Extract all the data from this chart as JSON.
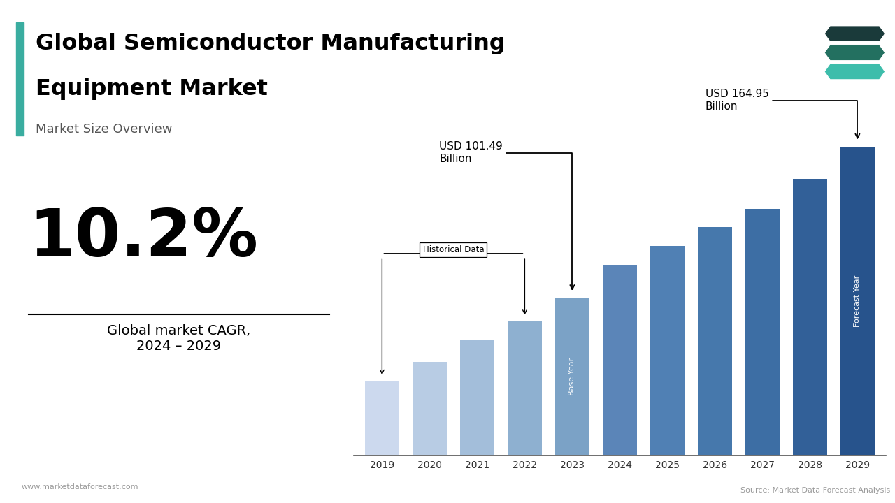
{
  "title_line1": "Global Semiconductor Manufacturing",
  "title_line2": "Equipment Market",
  "subtitle": "Market Size Overview",
  "cagr": "10.2%",
  "cagr_label": "Global market CAGR,\n2024 – 2029",
  "website": "www.marketdataforecast.com",
  "source": "Source: Market Data Forecast Analysis",
  "years": [
    2019,
    2020,
    2021,
    2022,
    2023,
    2024,
    2025,
    2026,
    2027,
    2028,
    2029
  ],
  "values": [
    40,
    50,
    62,
    72,
    84,
    101.49,
    112,
    122,
    132,
    148,
    164.95
  ],
  "bar_colors": [
    "#ccd9ee",
    "#b8cce4",
    "#a3beda",
    "#8eb0d0",
    "#7ba2c6",
    "#5b85b8",
    "#5080b4",
    "#4678ac",
    "#3d6ea4",
    "#326098",
    "#27538c"
  ],
  "annotation_101_text": "USD 101.49\nBillion",
  "annotation_164_text": "USD 164.95\nBillion",
  "historical_label": "Historical Data",
  "base_year_label": "Base Year",
  "forecast_year_label": "Forecast Year",
  "accent_color": "#3aada0",
  "title_bar_color": "#3aada0",
  "background_color": "#ffffff",
  "icon_colors": [
    "#1a3a3a",
    "#237060",
    "#3dbdab"
  ]
}
